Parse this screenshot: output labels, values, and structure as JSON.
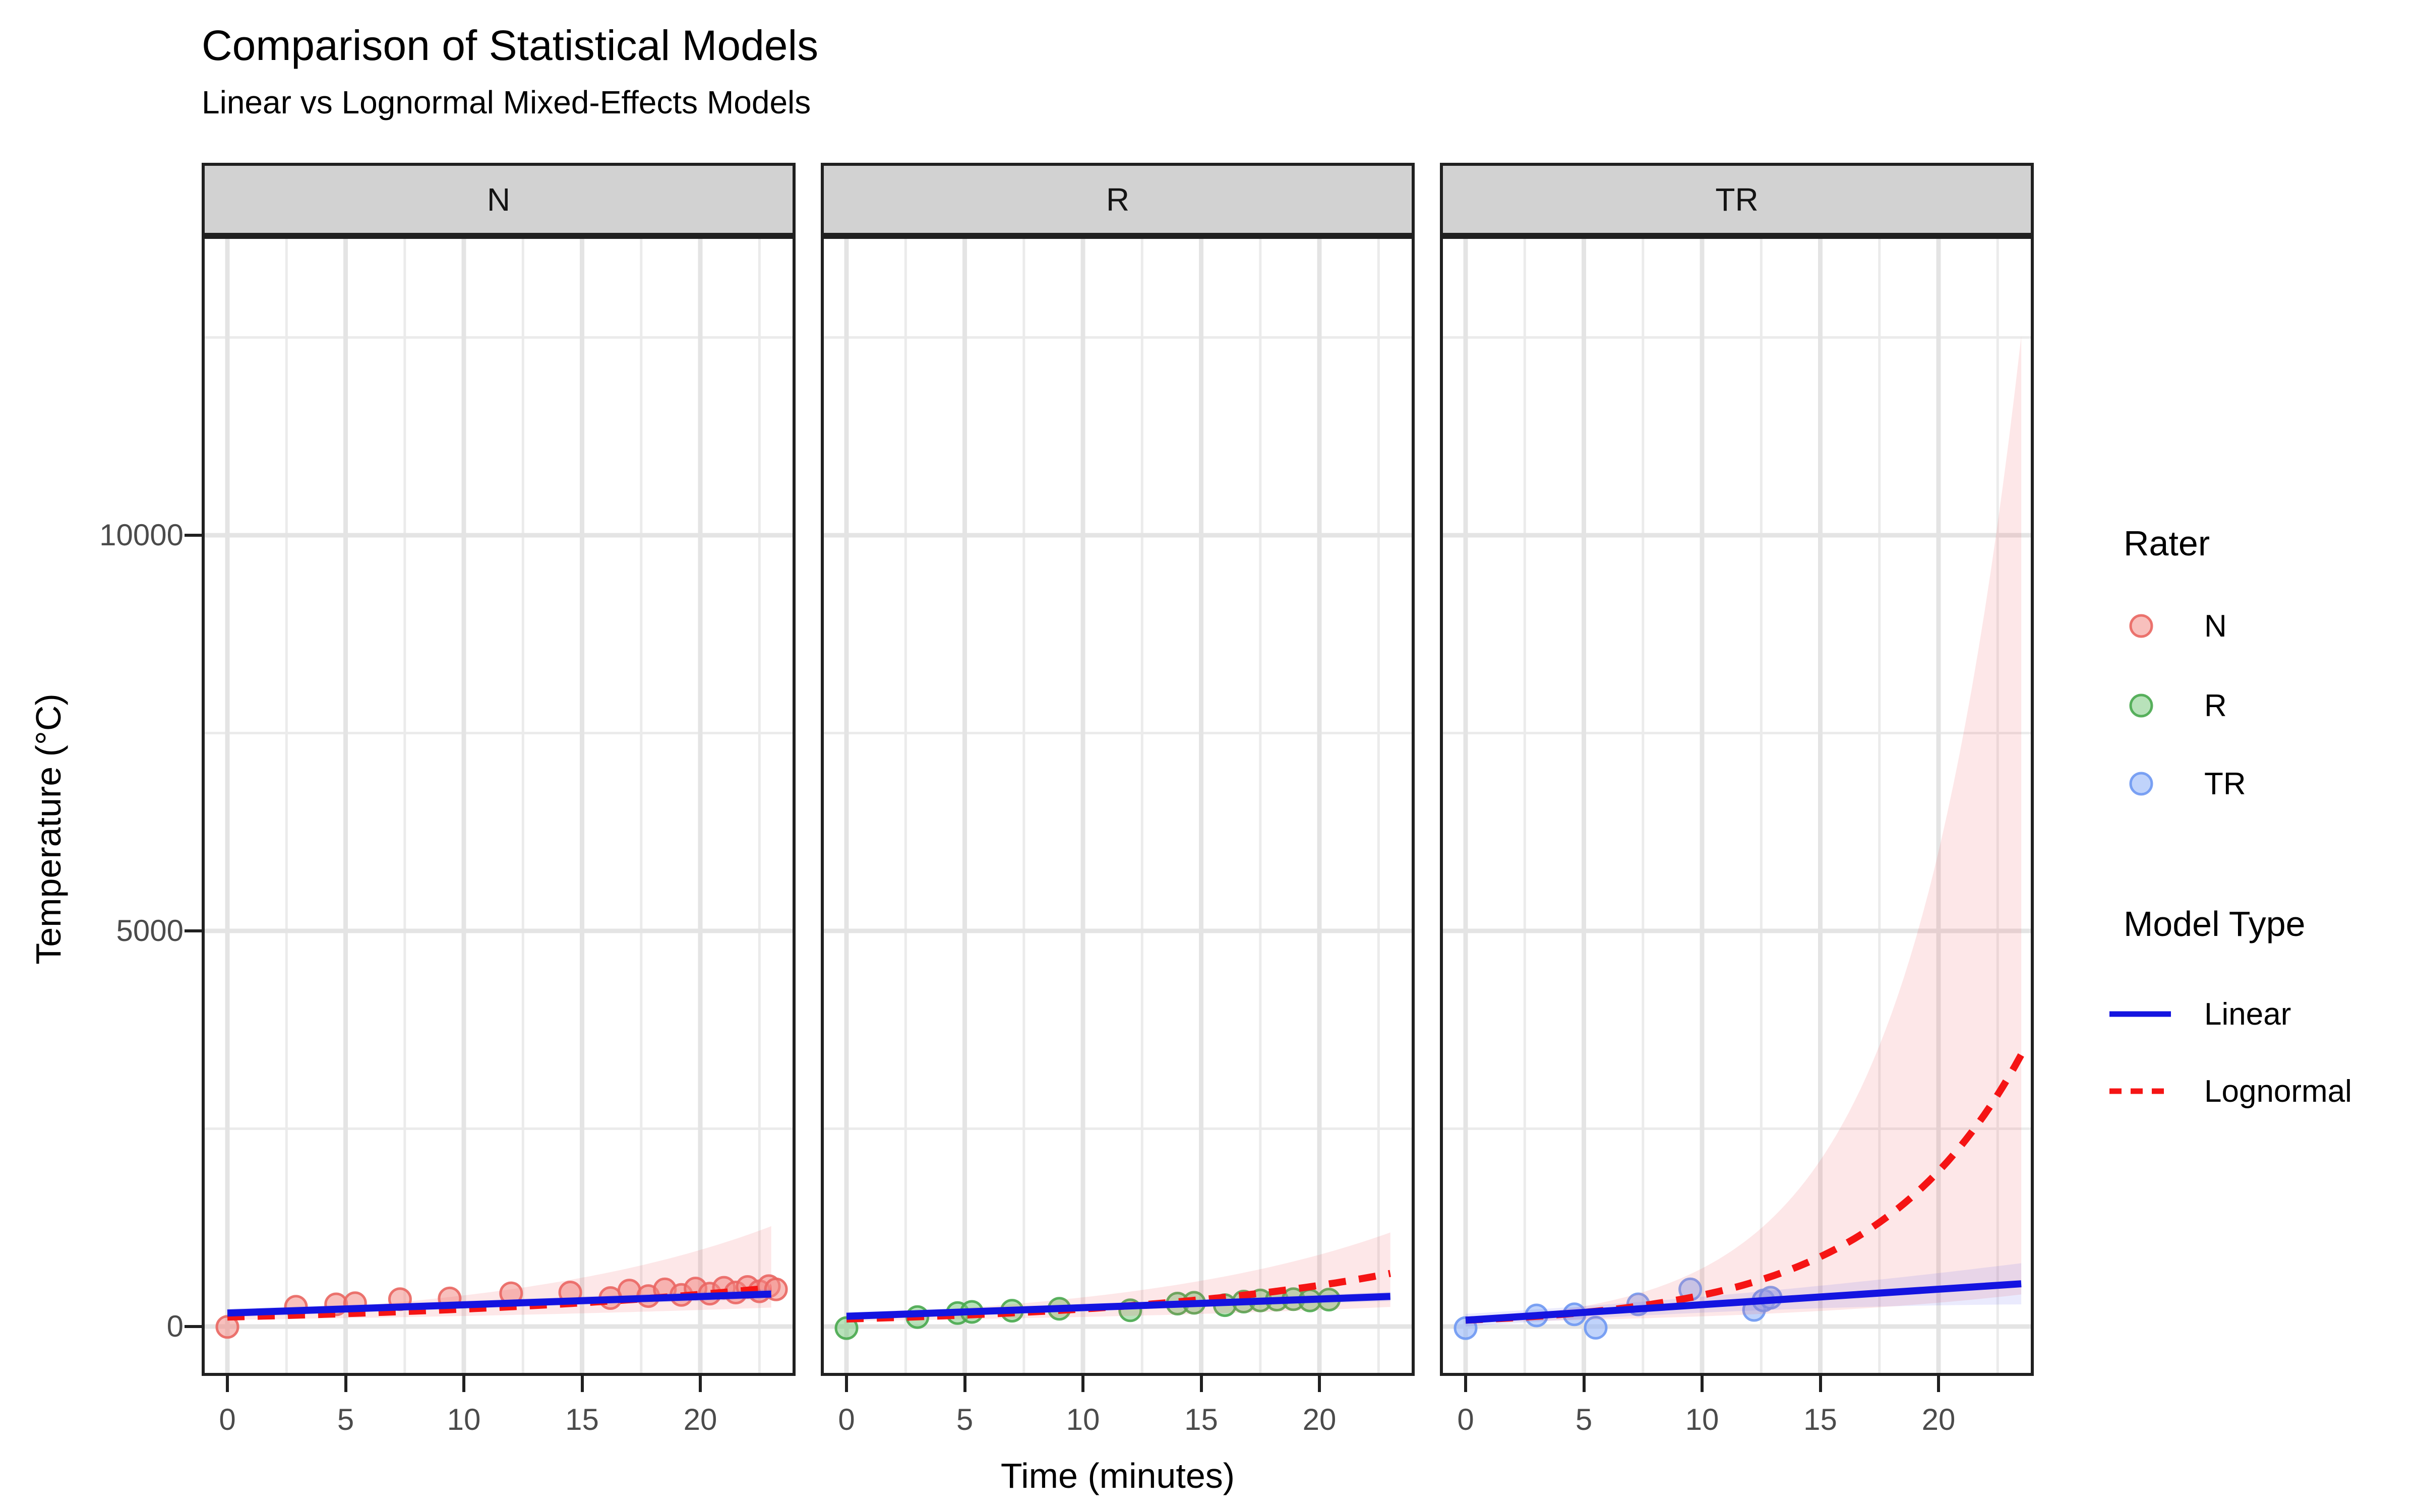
{
  "chart_data": {
    "type": "scatter",
    "title": "Comparison of Statistical Models",
    "subtitle": "Linear vs Lognormal Mixed-Effects Models",
    "xlabel": "Time (minutes)",
    "ylabel": "Temperature (°C)",
    "x_ticks": [
      0,
      5,
      10,
      15,
      20
    ],
    "x_minor_ticks": [
      2.5,
      7.5,
      12.5,
      17.5,
      22.5
    ],
    "y_ticks": [
      0,
      5000,
      10000
    ],
    "y_minor_ticks": [
      2500,
      7500,
      12500
    ],
    "x_range_minutes": [
      -1.1,
      24.0
    ],
    "y_range_celsius": [
      -620,
      13780
    ],
    "grid": true,
    "legend_position": "right",
    "facets": [
      {
        "label": "N",
        "rater": "N",
        "point_stroke": "rgba(233,102,96,0.9)",
        "point_fill": "rgba(243,140,134,0.55)",
        "points_xy": [
          [
            0,
            -5
          ],
          [
            2.9,
            250
          ],
          [
            4.6,
            280
          ],
          [
            5.4,
            295
          ],
          [
            7.3,
            345
          ],
          [
            9.4,
            355
          ],
          [
            12,
            420
          ],
          [
            14.5,
            430
          ],
          [
            16.2,
            360
          ],
          [
            17,
            455
          ],
          [
            17.8,
            385
          ],
          [
            18.5,
            470
          ],
          [
            19.2,
            400
          ],
          [
            19.8,
            480
          ],
          [
            20.4,
            415
          ],
          [
            21,
            490
          ],
          [
            21.5,
            430
          ],
          [
            22,
            500
          ],
          [
            22.5,
            445
          ],
          [
            22.9,
            510
          ],
          [
            23.2,
            470
          ]
        ],
        "linear_fit": {
          "t": [
            0,
            23.0
          ],
          "y": [
            170,
            410
          ]
        },
        "linear_ci_halfwidth": {
          "start": 55,
          "mid": 35,
          "end": 65
        },
        "lognormal_fit": {
          "t": [
            0,
            23.0
          ],
          "y0": 120,
          "k": 0.061
        },
        "lognormal_ci": {
          "lower_y0": 85,
          "lower_k": 0.045,
          "upper_y0": 160,
          "upper_k": 0.09
        }
      },
      {
        "label": "R",
        "rater": "R",
        "point_stroke": "rgba(72,168,78,0.9)",
        "point_fill": "rgba(125,202,130,0.55)",
        "points_xy": [
          [
            0,
            -20
          ],
          [
            3,
            120
          ],
          [
            4.7,
            170
          ],
          [
            5.3,
            185
          ],
          [
            7,
            200
          ],
          [
            9,
            225
          ],
          [
            12,
            205
          ],
          [
            14,
            290
          ],
          [
            14.7,
            300
          ],
          [
            16,
            270
          ],
          [
            16.8,
            315
          ],
          [
            17.5,
            330
          ],
          [
            18.2,
            340
          ],
          [
            18.9,
            345
          ],
          [
            19.6,
            330
          ],
          [
            20.4,
            340
          ]
        ],
        "linear_fit": {
          "t": [
            0,
            23.0
          ],
          "y": [
            130,
            380
          ]
        },
        "linear_ci_halfwidth": {
          "start": 50,
          "mid": 30,
          "end": 60
        },
        "lognormal_fit": {
          "t": [
            0,
            23.0
          ],
          "y0": 95,
          "k": 0.085
        },
        "lognormal_ci": {
          "lower_y0": 70,
          "lower_k": 0.055,
          "upper_y0": 150,
          "upper_k": 0.09
        }
      },
      {
        "label": "TR",
        "rater": "TR",
        "point_stroke": "rgba(110,152,242,0.9)",
        "point_fill": "rgba(150,182,248,0.6)",
        "points_xy": [
          [
            0,
            -20
          ],
          [
            3,
            140
          ],
          [
            4.6,
            155
          ],
          [
            5.5,
            -15
          ],
          [
            7.3,
            280
          ],
          [
            9.5,
            470
          ],
          [
            12.2,
            210
          ],
          [
            12.6,
            330
          ],
          [
            12.9,
            365
          ]
        ],
        "linear_fit": {
          "t": [
            0,
            23.5
          ],
          "y": [
            80,
            540
          ]
        },
        "linear_ci_halfwidth": {
          "start": 80,
          "mid": 55,
          "end": 260
        },
        "lognormal_fit": {
          "t": [
            0,
            23.5
          ],
          "y0": 80,
          "k": 0.16
        },
        "lognormal_ci": {
          "lower_y0": 55,
          "lower_k": 0.085,
          "upper_y0": 90,
          "upper_k": 0.21
        }
      }
    ],
    "legend": {
      "rater": {
        "title": "Rater",
        "items": [
          {
            "label": "N",
            "stroke": "rgba(233,102,96,0.9)",
            "fill": "rgba(243,140,134,0.55)"
          },
          {
            "label": "R",
            "stroke": "rgba(72,168,78,0.9)",
            "fill": "rgba(125,202,130,0.55)"
          },
          {
            "label": "TR",
            "stroke": "rgba(110,152,242,0.9)",
            "fill": "rgba(150,182,248,0.6)"
          }
        ]
      },
      "model": {
        "title": "Model Type",
        "items": [
          {
            "label": "Linear",
            "color": "#1414E0",
            "dash": "solid"
          },
          {
            "label": "Lognormal",
            "color": "#F51414",
            "dash": "dashed"
          }
        ]
      }
    },
    "style": {
      "linear_color": "#1414E0",
      "lognormal_color": "#F51414",
      "linear_ribbon": "rgba(80,80,235,0.12)",
      "lognormal_ribbon": "rgba(244,106,110,0.16)",
      "strip_bg": "#D2D2D2",
      "panel_border": "#202020",
      "grid_major": "#E4E4E4",
      "grid_minor": "#EBEBEB",
      "tick_label_color": "#4b4b4b"
    }
  }
}
